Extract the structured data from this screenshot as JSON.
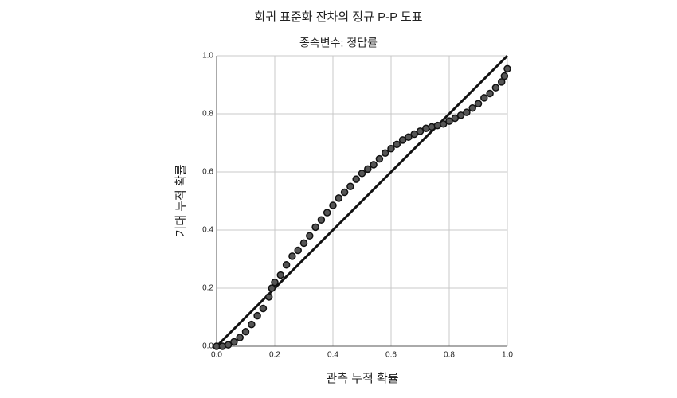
{
  "chart_data": {
    "type": "scatter",
    "title": "회귀 표준화 잔차의 정규 P-P 도표",
    "subtitle": "종속변수: 정답률",
    "x_label": "관측 누적 확률",
    "y_label": "기대 누적 확률",
    "x": [
      0.0,
      0.02,
      0.04,
      0.06,
      0.08,
      0.1,
      0.12,
      0.14,
      0.16,
      0.18,
      0.19,
      0.2,
      0.22,
      0.24,
      0.26,
      0.28,
      0.3,
      0.32,
      0.34,
      0.36,
      0.38,
      0.4,
      0.42,
      0.44,
      0.46,
      0.48,
      0.5,
      0.52,
      0.54,
      0.56,
      0.58,
      0.6,
      0.62,
      0.64,
      0.66,
      0.68,
      0.7,
      0.72,
      0.74,
      0.76,
      0.78,
      0.8,
      0.82,
      0.84,
      0.86,
      0.88,
      0.9,
      0.92,
      0.94,
      0.96,
      0.98,
      0.99,
      1.0
    ],
    "values": [
      0.0,
      0.0,
      0.005,
      0.015,
      0.03,
      0.05,
      0.075,
      0.105,
      0.13,
      0.17,
      0.2,
      0.22,
      0.245,
      0.28,
      0.31,
      0.33,
      0.355,
      0.38,
      0.41,
      0.435,
      0.46,
      0.485,
      0.51,
      0.53,
      0.55,
      0.575,
      0.595,
      0.61,
      0.625,
      0.645,
      0.665,
      0.68,
      0.695,
      0.71,
      0.72,
      0.73,
      0.74,
      0.75,
      0.755,
      0.76,
      0.765,
      0.775,
      0.785,
      0.795,
      0.805,
      0.82,
      0.835,
      0.855,
      0.87,
      0.89,
      0.91,
      0.93,
      0.955
    ],
    "color": "#555555",
    "xlim": [
      0,
      1
    ],
    "ylim": [
      0,
      1
    ],
    "xticks": [
      {
        "value": 0,
        "label": "0.0"
      },
      {
        "value": 0.2,
        "label": "0.2"
      },
      {
        "value": 0.4,
        "label": "0.4"
      },
      {
        "value": 0.6,
        "label": "0.6"
      },
      {
        "value": 0.8,
        "label": "0.8"
      },
      {
        "value": 1,
        "label": "1.0"
      }
    ],
    "yticks": [
      {
        "value": 0,
        "label": "0.0"
      },
      {
        "value": 0.2,
        "label": "0.2"
      },
      {
        "value": 0.4,
        "label": "0.4"
      },
      {
        "value": 0.6,
        "label": "0.6"
      },
      {
        "value": 0.8,
        "label": "0.8"
      },
      {
        "value": 1,
        "label": "1.0"
      }
    ],
    "grid": true
  }
}
